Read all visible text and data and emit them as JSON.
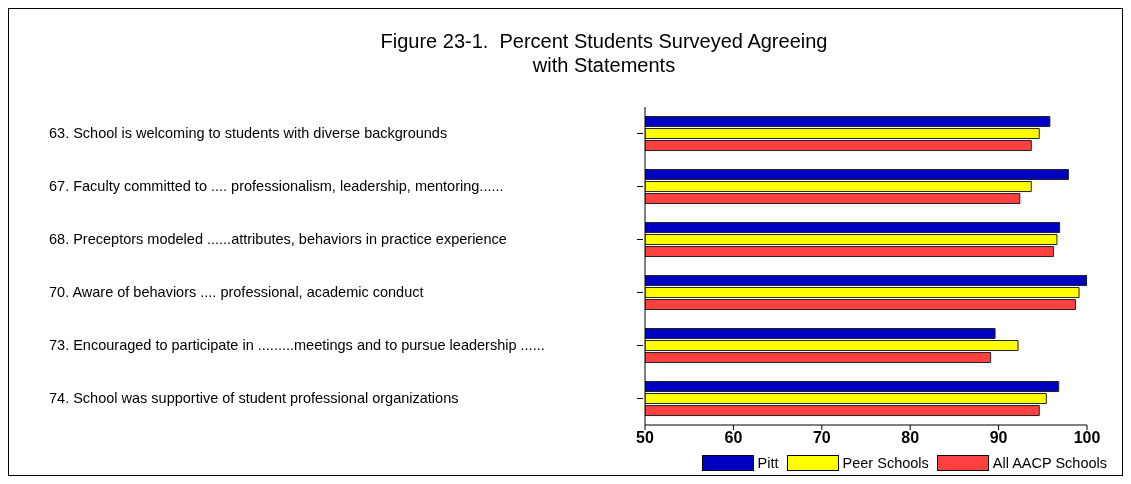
{
  "chart_data": {
    "type": "bar",
    "orientation": "horizontal",
    "title": "Figure 23-1.  Percent Students Surveyed Agreeing with Statements",
    "categories": [
      "63. School is welcoming to students with diverse backgrounds",
      "67. Faculty committed to .... professionalism, leadership, mentoring......",
      "68. Preceptors modeled ......attributes, behaviors in practice experience",
      "70. Aware of behaviors .... professional, academic conduct",
      "73. Encouraged to participate in .........meetings and to pursue leadership ......",
      "74. School was supportive of student professional organizations"
    ],
    "series": [
      {
        "name": "Pitt",
        "color": "#0000c0",
        "values": [
          95.8,
          97.9,
          96.9,
          100,
          89.6,
          96.8
        ]
      },
      {
        "name": "Peer Schools",
        "color": "#ffff00",
        "values": [
          94.6,
          93.7,
          96.6,
          99.1,
          92.2,
          95.4
        ]
      },
      {
        "name": "All AACP Schools",
        "color": "#ff4040",
        "values": [
          93.7,
          92.4,
          96.2,
          98.7,
          89.1,
          94.6
        ]
      }
    ],
    "xlim": [
      50,
      100
    ],
    "xticks": [
      50,
      60,
      70,
      80,
      90,
      100
    ],
    "grid": false,
    "legend": "bottom"
  }
}
